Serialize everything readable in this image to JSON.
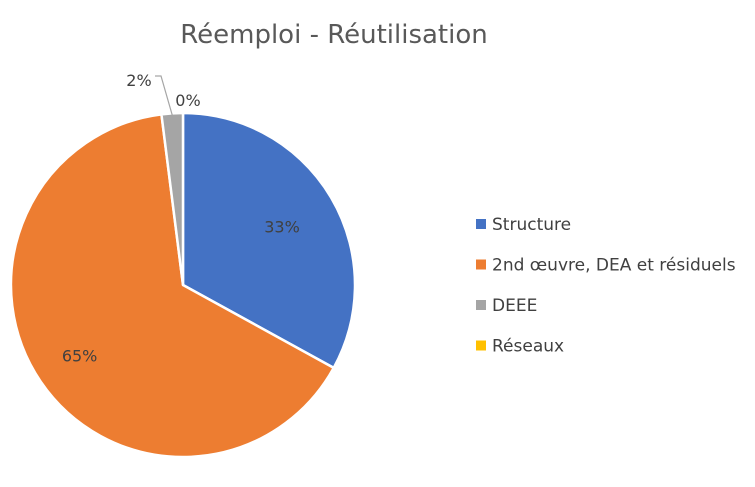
{
  "chart_data": {
    "type": "pie",
    "title": "Réemploi - Réutilisation",
    "categories": [
      "Structure",
      "2nd œuvre, DEA et résiduels",
      "DEEE",
      "Réseaux"
    ],
    "values": [
      33,
      65,
      2,
      0
    ],
    "data_labels": [
      "33%",
      "65%",
      "2%",
      "0%"
    ],
    "colors": [
      "#4472C4",
      "#ED7D31",
      "#A5A5A5",
      "#FFC000"
    ],
    "legend_position": "right",
    "start_angle": "12 o'clock",
    "direction": "clockwise"
  }
}
